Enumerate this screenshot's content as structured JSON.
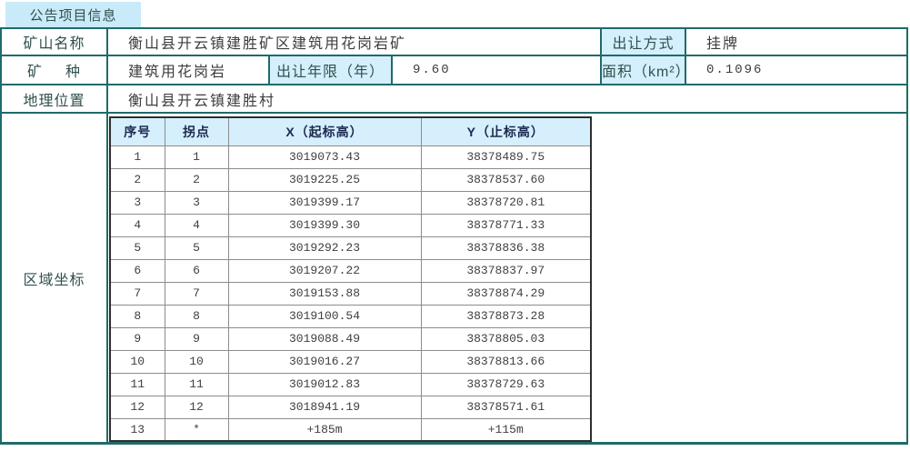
{
  "tab": {
    "label": "公告项目信息"
  },
  "colors": {
    "border_teal": "#1f6b6a",
    "tab_blue": "#c9ebf9",
    "cell_blue": "#d5effc"
  },
  "info": {
    "mine_name_label": "矿山名称",
    "mine_name": "衡山县开云镇建胜矿区建筑用花岗岩矿",
    "transfer_method_label": "出让方式",
    "transfer_method": "挂牌",
    "mineral_label_left": "矿",
    "mineral_label_right": "种",
    "mineral": "建筑用花岗岩",
    "term_label": "出让年限（年）",
    "term": "9.60",
    "area_label": "面积（km²）",
    "area": "0.1096",
    "location_label": "地理位置",
    "location": "衡山县开云镇建胜村",
    "coords_label": "区域坐标"
  },
  "coords_table": {
    "headers": [
      "序号",
      "拐点",
      "X（起标高）",
      "Y（止标高）"
    ],
    "rows": [
      [
        "1",
        "1",
        "3019073.43",
        "38378489.75"
      ],
      [
        "2",
        "2",
        "3019225.25",
        "38378537.60"
      ],
      [
        "3",
        "3",
        "3019399.17",
        "38378720.81"
      ],
      [
        "4",
        "4",
        "3019399.30",
        "38378771.33"
      ],
      [
        "5",
        "5",
        "3019292.23",
        "38378836.38"
      ],
      [
        "6",
        "6",
        "3019207.22",
        "38378837.97"
      ],
      [
        "7",
        "7",
        "3019153.88",
        "38378874.29"
      ],
      [
        "8",
        "8",
        "3019100.54",
        "38378873.28"
      ],
      [
        "9",
        "9",
        "3019088.49",
        "38378805.03"
      ],
      [
        "10",
        "10",
        "3019016.27",
        "38378813.66"
      ],
      [
        "11",
        "11",
        "3019012.83",
        "38378729.63"
      ],
      [
        "12",
        "12",
        "3018941.19",
        "38378571.61"
      ],
      [
        "13",
        "*",
        "+185m",
        "+115m"
      ]
    ]
  }
}
